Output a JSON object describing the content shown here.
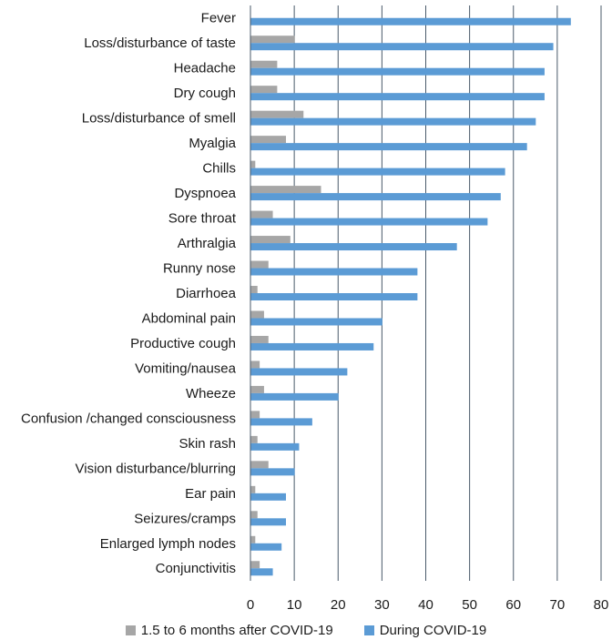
{
  "chart_data": {
    "type": "bar",
    "orientation": "horizontal",
    "categories": [
      "Fever",
      "Loss/disturbance of taste",
      "Headache",
      "Dry cough",
      "Loss/disturbance of smell",
      "Myalgia",
      "Chills",
      "Dyspnoea",
      "Sore throat",
      "Arthralgia",
      "Runny nose",
      "Diarrhoea",
      "Abdominal pain",
      "Productive cough",
      "Vomiting/nausea",
      "Wheeze",
      "Confusion /changed consciousness",
      "Skin rash",
      "Vision disturbance/blurring",
      "Ear pain",
      "Seizures/cramps",
      "Enlarged lymph nodes",
      "Conjunctivitis"
    ],
    "series": [
      {
        "name": "1.5 to 6 months after COVID-19",
        "color": "#a6a6a6",
        "values": [
          0,
          10,
          6,
          6,
          12,
          8,
          1,
          16,
          5,
          9,
          4,
          1.5,
          3,
          4,
          2,
          3,
          2,
          1.5,
          4,
          1,
          1.5,
          1,
          2
        ]
      },
      {
        "name": "During COVID-19",
        "color": "#5b9bd5",
        "values": [
          73,
          69,
          67,
          67,
          65,
          63,
          58,
          57,
          54,
          47,
          38,
          38,
          30,
          28,
          22,
          20,
          14,
          11,
          10,
          8,
          8,
          7,
          5
        ]
      }
    ],
    "xlim": [
      0,
      80
    ],
    "xticks": [
      "0",
      "10",
      "20",
      "30",
      "40",
      "50",
      "60",
      "70",
      "80"
    ],
    "grid": "vertical",
    "legend_position": "bottom"
  }
}
